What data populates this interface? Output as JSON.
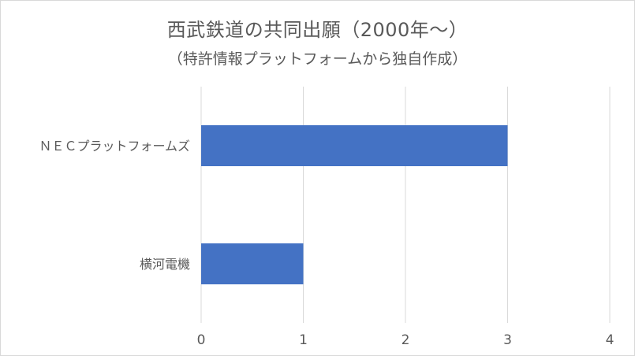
{
  "chart_data": {
    "type": "bar",
    "orientation": "horizontal",
    "title": "西武鉄道の共同出願（2000年～）",
    "subtitle": "（特許情報プラットフォームから独自作成）",
    "categories": [
      "ＮＥＣプラットフォームズ",
      "横河電機"
    ],
    "values": [
      3,
      1
    ],
    "xlim": [
      0,
      4
    ],
    "xticks": [
      "0",
      "1",
      "2",
      "3",
      "4"
    ],
    "xlabel": "",
    "ylabel": "",
    "grid": "vertical",
    "legend": "none",
    "bar_color": "#4472c4",
    "grid_color": "#d9d9d9"
  }
}
